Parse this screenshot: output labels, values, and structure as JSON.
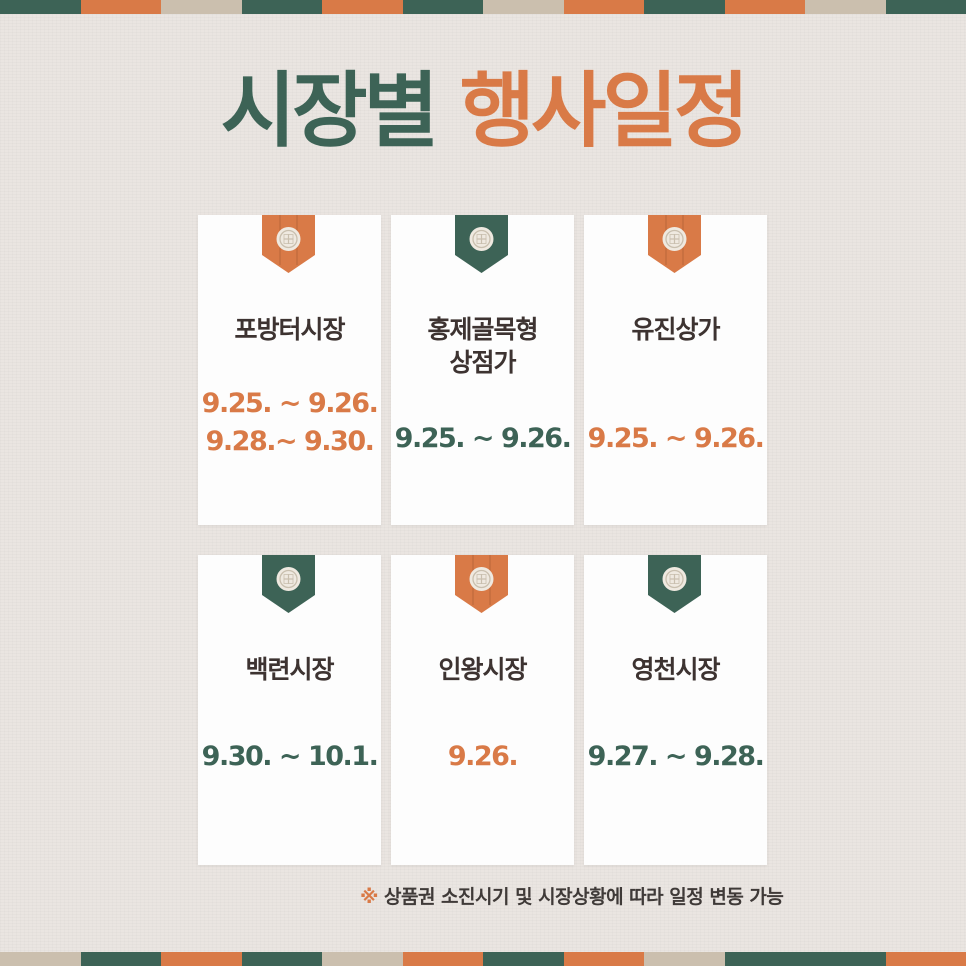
{
  "colors": {
    "green": "#3d6356",
    "orange": "#d97a47",
    "cream": "#cbbfae"
  },
  "title": {
    "part1": "시장별",
    "part2": "행사일정"
  },
  "markets": [
    {
      "name": "포방터시장",
      "dates": [
        "9.25. ~ 9.26.",
        "9.28.~ 9.30."
      ],
      "tag_color": "orange",
      "date_color": "orange"
    },
    {
      "name": "홍제골목형\n상점가",
      "dates": [
        "9.25. ~ 9.26."
      ],
      "tag_color": "green",
      "date_color": "green"
    },
    {
      "name": "유진상가",
      "dates": [
        "9.25. ~ 9.26."
      ],
      "tag_color": "orange",
      "date_color": "orange"
    },
    {
      "name": "백련시장",
      "dates": [
        "9.30. ~ 10.1."
      ],
      "tag_color": "green",
      "date_color": "green"
    },
    {
      "name": "인왕시장",
      "dates": [
        "9.26."
      ],
      "tag_color": "orange",
      "date_color": "orange"
    },
    {
      "name": "영천시장",
      "dates": [
        "9.27. ~ 9.28."
      ],
      "tag_color": "green",
      "date_color": "green"
    }
  ],
  "note": {
    "mark": "※",
    "text": "상품권 소진시기 및 시장상황에  따라 일정 변동 가능"
  }
}
